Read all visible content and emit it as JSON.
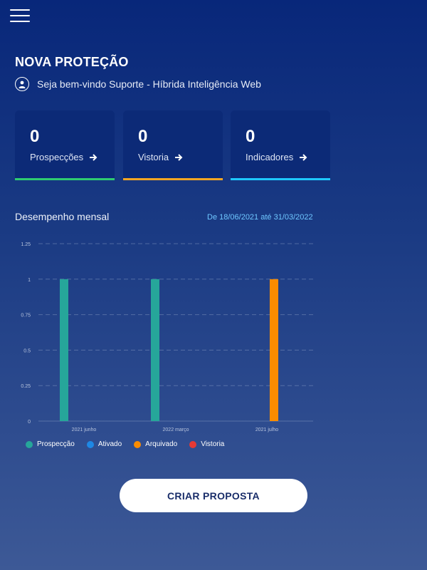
{
  "header": {
    "title": "NOVA PROTEÇÃO",
    "welcome": "Seja bem-vindo Suporte - Híbrida Inteligência Web"
  },
  "cards": [
    {
      "count": "0",
      "label": "Prospecções",
      "color": "#2ecc71"
    },
    {
      "count": "0",
      "label": "Vistoria",
      "color": "#f5a623"
    },
    {
      "count": "0",
      "label": "Indicadores",
      "color": "#1ec8ff"
    }
  ],
  "performance": {
    "title": "Desempenho mensal",
    "date_range": "De 18/06/2021 até 31/03/2022"
  },
  "chart_data": {
    "type": "bar",
    "categories": [
      "2021 junho",
      "2022 março",
      "2021 julho"
    ],
    "y_ticks": [
      "1.25",
      "1",
      "0.75",
      "0.5",
      "0.25",
      "0"
    ],
    "ylim": [
      0,
      1.25
    ],
    "grid": true,
    "legend_position": "bottom-left",
    "series": [
      {
        "name": "Prospecção",
        "color": "#26a69a",
        "values": [
          1,
          1,
          0
        ]
      },
      {
        "name": "Ativado",
        "color": "#1e88e5",
        "values": [
          0,
          0,
          0
        ]
      },
      {
        "name": "Arquivado",
        "color": "#fb8c00",
        "values": [
          0,
          0,
          1
        ]
      },
      {
        "name": "Vistoria",
        "color": "#e53935",
        "values": [
          0,
          0,
          0
        ]
      }
    ]
  },
  "cta": {
    "label": "CRIAR PROPOSTA"
  }
}
